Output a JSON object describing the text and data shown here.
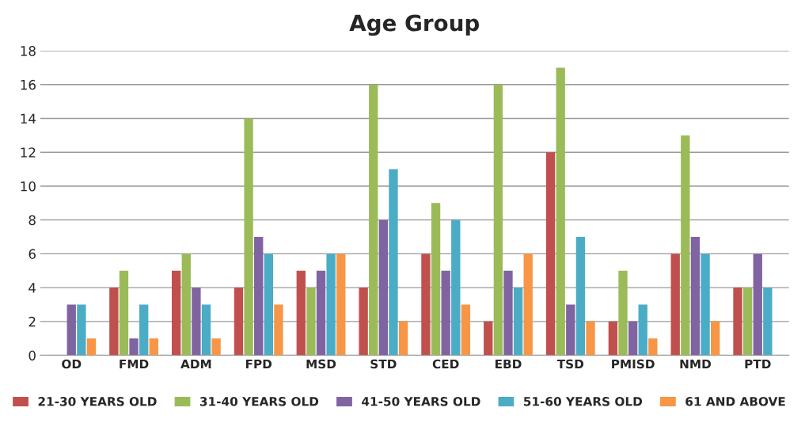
{
  "chart_data": {
    "type": "bar",
    "title": "Age Group",
    "categories": [
      "OD",
      "FMD",
      "ADM",
      "FPD",
      "MSD",
      "STD",
      "CED",
      "EBD",
      "TSD",
      "PMISD",
      "NMD",
      "PTD"
    ],
    "series": [
      {
        "name": "21-30 YEARS OLD",
        "color": "#c0504d",
        "values": [
          null,
          4,
          5,
          4,
          5,
          4,
          6,
          2,
          12,
          2,
          6,
          4
        ]
      },
      {
        "name": "31-40 YEARS OLD",
        "color": "#9bbb59",
        "values": [
          null,
          5,
          6,
          14,
          4,
          16,
          9,
          16,
          17,
          5,
          13,
          4
        ]
      },
      {
        "name": "41-50 YEARS OLD",
        "color": "#8064a2",
        "values": [
          3,
          1,
          4,
          7,
          5,
          8,
          5,
          5,
          3,
          2,
          7,
          6
        ]
      },
      {
        "name": "51-60 YEARS OLD",
        "color": "#4bacc6",
        "values": [
          3,
          3,
          3,
          6,
          6,
          11,
          8,
          4,
          7,
          3,
          6,
          4
        ]
      },
      {
        "name": "61 AND ABOVE",
        "color": "#f79646",
        "values": [
          1,
          1,
          1,
          3,
          6,
          2,
          3,
          6,
          2,
          1,
          2,
          null
        ]
      }
    ],
    "ylim": [
      0,
      18
    ],
    "yticks": [
      0,
      2,
      4,
      6,
      8,
      10,
      12,
      14,
      16,
      18
    ],
    "grid": "y",
    "legend": "bottom"
  }
}
